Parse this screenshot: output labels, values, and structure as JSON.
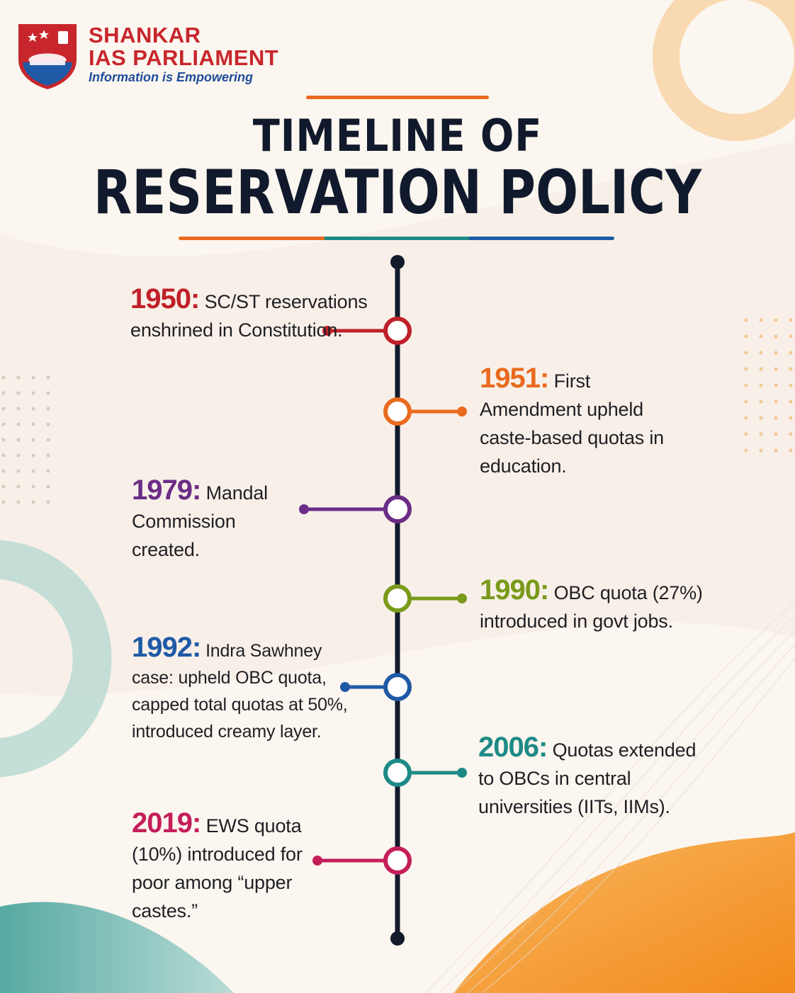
{
  "logo": {
    "line1": "SHANKAR",
    "line2": "IAS PARLIAMENT",
    "tagline": "Information is Empowering"
  },
  "title": {
    "line1": "TIMELINE OF",
    "line2": "RESERVATION POLICY"
  },
  "colors": {
    "dark": "#111a2c",
    "orange": "#ea6a1f",
    "teal": "#1e8a86",
    "blue": "#1f5aa6",
    "red": "#c0202a",
    "purple": "#6b2d86",
    "green": "#7a9a1a",
    "magenta": "#c41e5a"
  },
  "events": [
    {
      "year": "1950:",
      "text": "SC/ST reservations enshrined in Constitution.",
      "color": "#c0202a"
    },
    {
      "year": "1951:",
      "text": "First Amendment upheld caste-based quotas in education.",
      "color": "#ea6a1f"
    },
    {
      "year": "1979:",
      "text": "Mandal Commission created.",
      "color": "#6b2d86"
    },
    {
      "year": "1990:",
      "text": "OBC quota (27%) introduced in govt jobs.",
      "color": "#7a9a1a"
    },
    {
      "year": "1992:",
      "text": "Indra Sawhney case: upheld OBC quota, capped total quotas at 50%, introduced creamy layer.",
      "color": "#1f5aa6"
    },
    {
      "year": "2006:",
      "text": "Quotas extended to OBCs in central universities (IITs, IIMs).",
      "color": "#1e8a86"
    },
    {
      "year": "2019:",
      "text": "EWS quota (10%) introduced for poor among “upper castes.”",
      "color": "#c41e5a"
    }
  ]
}
